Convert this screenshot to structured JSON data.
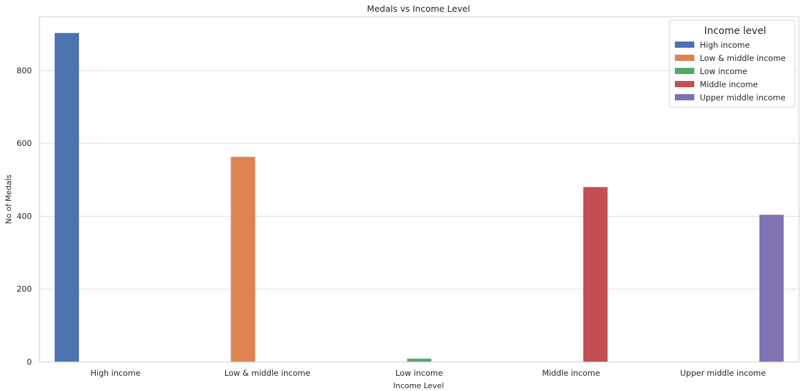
{
  "chart_data": {
    "type": "bar",
    "title": "Medals vs Income Level",
    "xlabel": "Income Level",
    "ylabel": "No of Medals",
    "categories": [
      "High income",
      "Low & middle income",
      "Low income",
      "Middle income",
      "Upper middle income"
    ],
    "series": [
      {
        "name": "High income",
        "color": "#4c72b0",
        "values": [
          903,
          0,
          0,
          0,
          0
        ]
      },
      {
        "name": "Low & middle income",
        "color": "#dd8452",
        "values": [
          0,
          563,
          0,
          0,
          0
        ]
      },
      {
        "name": "Low income",
        "color": "#55a868",
        "values": [
          0,
          0,
          9,
          0,
          0
        ]
      },
      {
        "name": "Middle income",
        "color": "#c44e52",
        "values": [
          0,
          0,
          0,
          480,
          0
        ]
      },
      {
        "name": "Upper middle income",
        "color": "#8172b3",
        "values": [
          0,
          0,
          0,
          0,
          404
        ]
      }
    ],
    "yticks": [
      0,
      200,
      400,
      600,
      800
    ],
    "ylim": [
      0,
      948
    ],
    "grid": "horizontal",
    "legend": {
      "title": "Income level",
      "placement": "top-right"
    }
  }
}
